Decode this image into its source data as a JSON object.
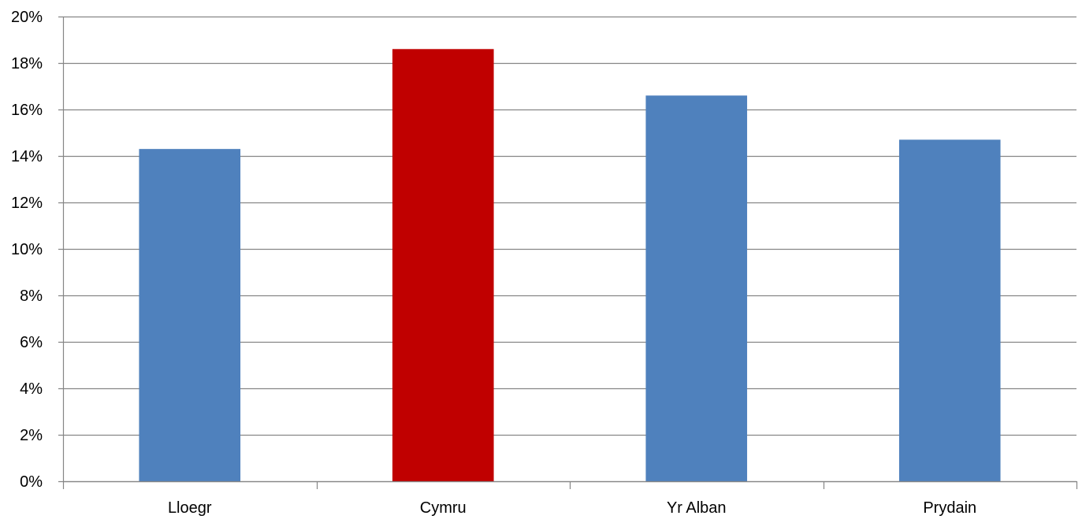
{
  "chart_data": {
    "type": "bar",
    "title": "",
    "xlabel": "",
    "ylabel": "",
    "categories": [
      "Lloegr",
      "Cymru",
      "Yr Alban",
      "Prydain"
    ],
    "values": [
      0.143,
      0.186,
      0.166,
      0.147
    ],
    "bar_colors": [
      "#4f81bd",
      "#c00000",
      "#4f81bd",
      "#4f81bd"
    ],
    "ylim": [
      0,
      0.2
    ],
    "y_ticks": [
      0,
      0.02,
      0.04,
      0.06,
      0.08,
      0.1,
      0.12,
      0.14,
      0.16,
      0.18,
      0.2
    ],
    "y_tick_labels": [
      "0%",
      "2%",
      "4%",
      "6%",
      "8%",
      "10%",
      "12%",
      "14%",
      "16%",
      "18%",
      "20%"
    ],
    "grid": true,
    "grid_color": "#868686",
    "legend": "none"
  }
}
